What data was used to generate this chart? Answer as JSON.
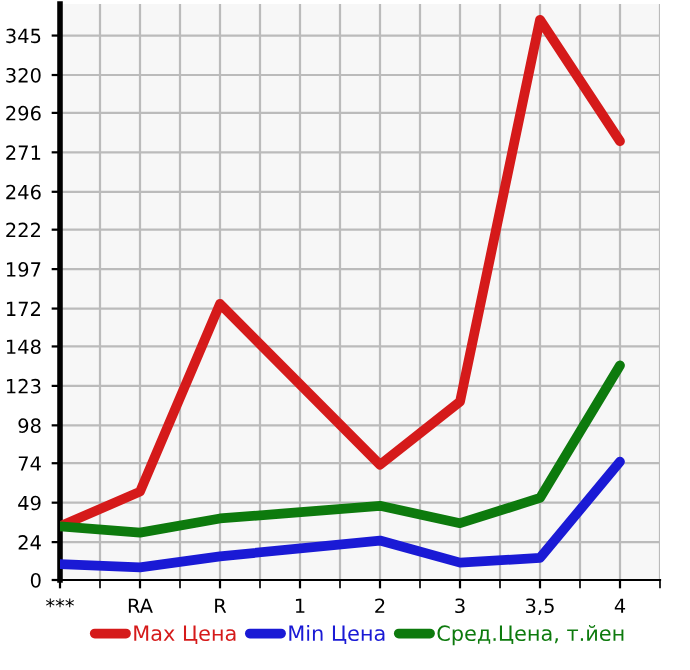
{
  "chart_data": {
    "type": "line",
    "categories": [
      "***",
      "RA",
      "R",
      "1",
      "2",
      "3",
      "3,5",
      "4"
    ],
    "series": [
      {
        "name": "Max Цена",
        "color": "#d51a1a",
        "values": [
          34,
          56,
          175,
          null,
          73,
          113,
          355,
          278
        ]
      },
      {
        "name": "Min Цена",
        "color": "#1a1ad5",
        "values": [
          10,
          8,
          15,
          null,
          25,
          11,
          14,
          75
        ]
      },
      {
        "name": "Сред.Цена, т.йен",
        "color": "#0d7a0d",
        "values": [
          34,
          30,
          39,
          null,
          47,
          36,
          52,
          136
        ]
      }
    ],
    "ylim": [
      0,
      365
    ],
    "yticks": [
      0,
      24,
      49,
      74,
      98,
      123,
      148,
      172,
      197,
      222,
      246,
      271,
      296,
      320,
      345
    ],
    "grid": true,
    "legend": "bottom",
    "marker": "none",
    "line_style": "solid"
  }
}
